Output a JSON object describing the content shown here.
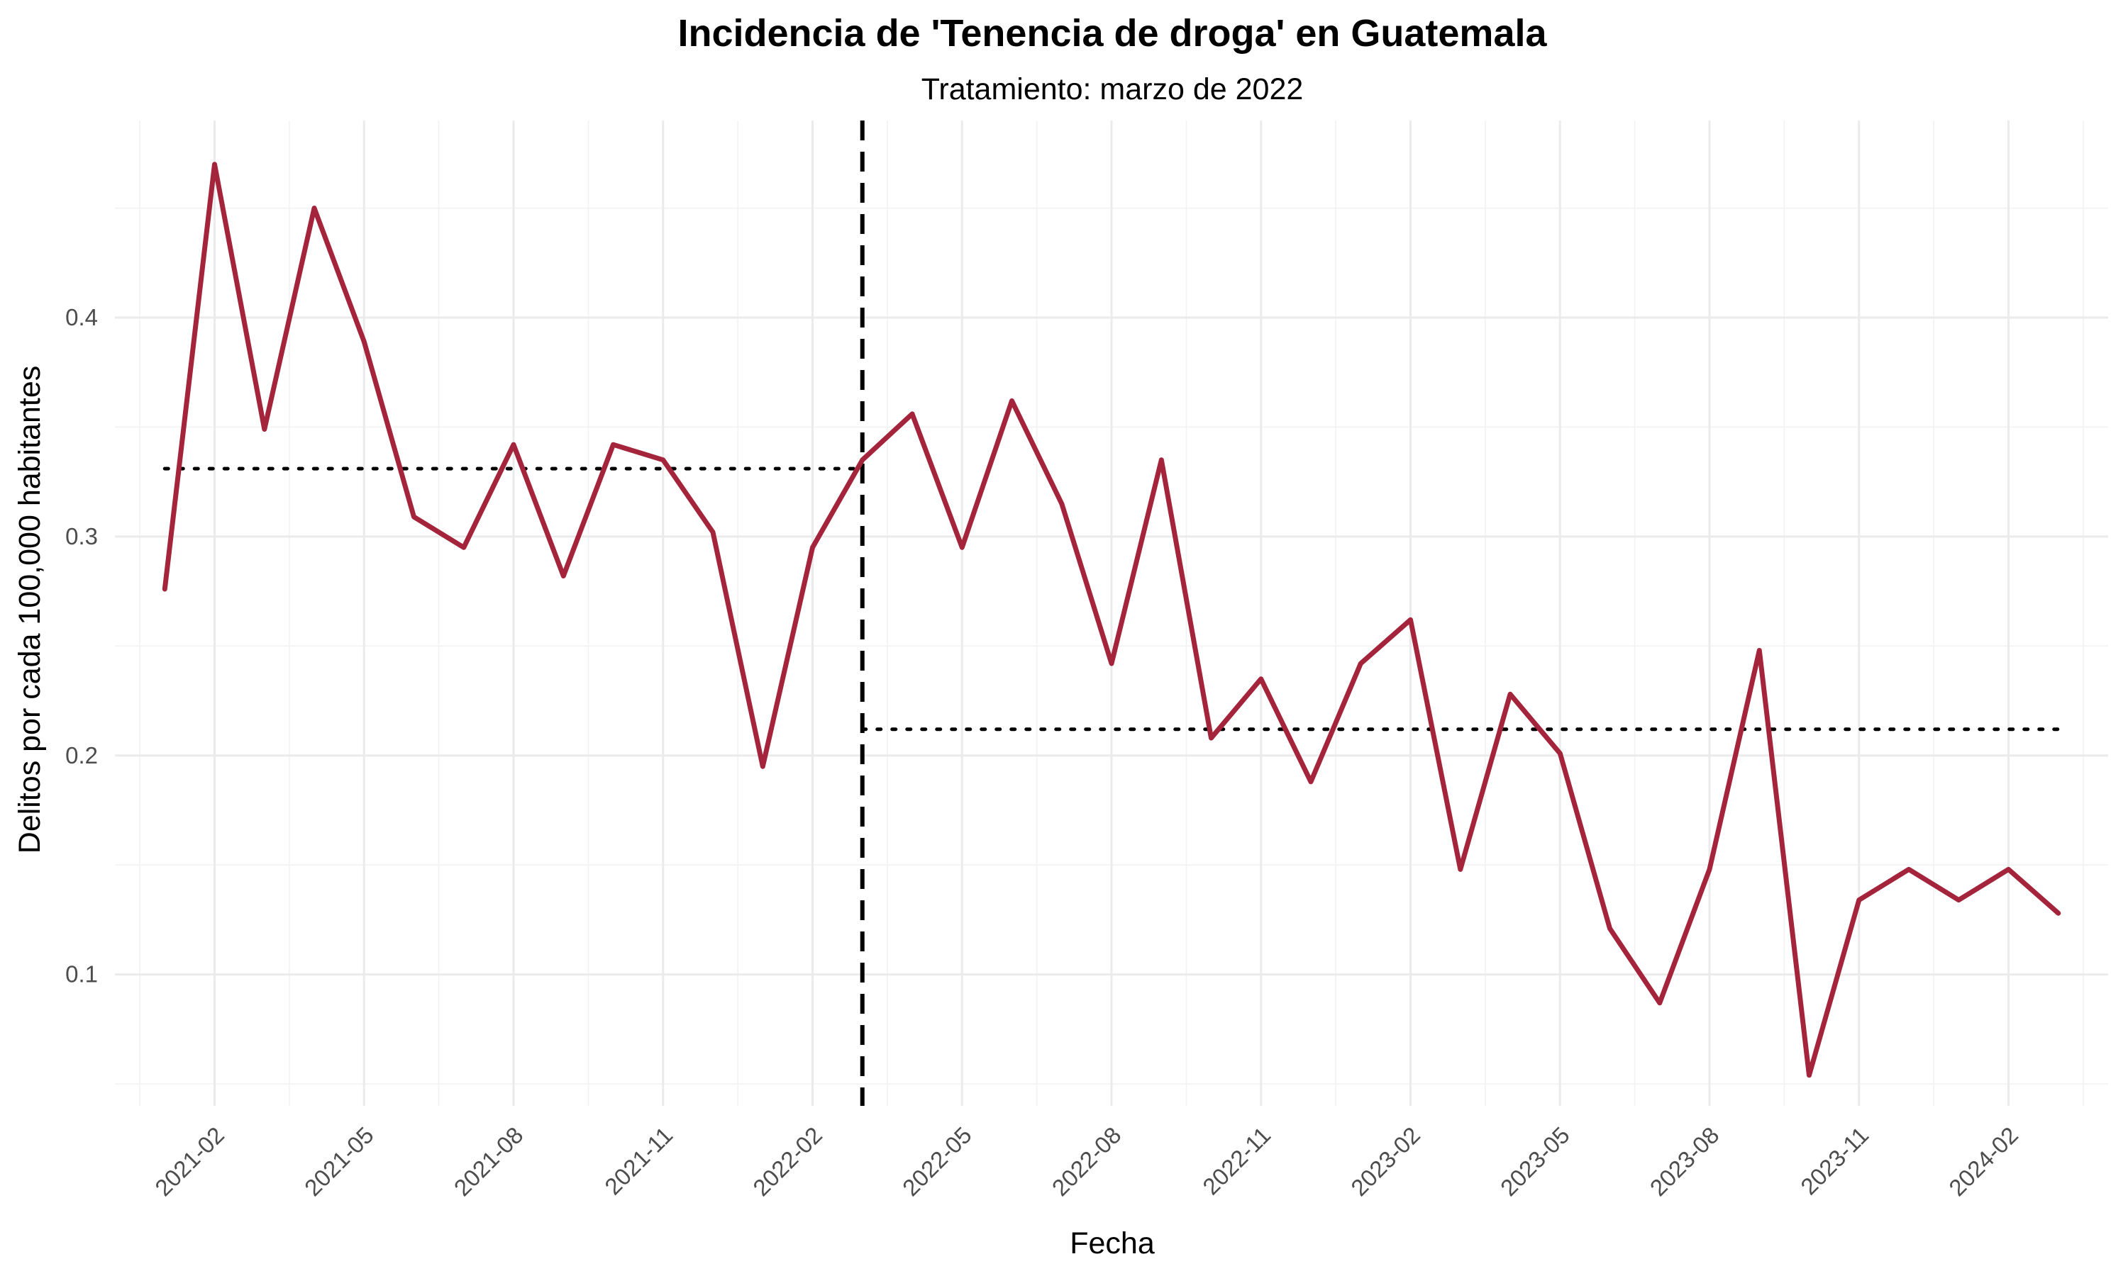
{
  "chart_data": {
    "type": "line",
    "title": "Incidencia de 'Tenencia de droga' en Guatemala",
    "subtitle": "Tratamiento: marzo de 2022",
    "xlabel": "Fecha",
    "ylabel": "Delitos por cada 100,000 habitantes",
    "x_tick_labels": [
      "2021-02",
      "2021-05",
      "2021-08",
      "2021-11",
      "2022-02",
      "2022-05",
      "2022-08",
      "2022-11",
      "2023-02",
      "2023-05",
      "2023-08",
      "2023-11",
      "2024-02"
    ],
    "y_tick_labels": [
      "0.1",
      "0.2",
      "0.3",
      "0.4"
    ],
    "y_ticks": [
      0.1,
      0.2,
      0.3,
      0.4
    ],
    "ylim": [
      0.04,
      0.49
    ],
    "xlim": [
      "2020-12-01",
      "2024-04-01"
    ],
    "grid": true,
    "treatment_date": "2022-03-01",
    "series": [
      {
        "color": "#A4243B",
        "x": [
          "2021-01",
          "2021-02",
          "2021-03",
          "2021-04",
          "2021-05",
          "2021-06",
          "2021-07",
          "2021-08",
          "2021-09",
          "2021-10",
          "2021-11",
          "2021-12",
          "2022-01",
          "2022-02",
          "2022-03",
          "2022-04",
          "2022-05",
          "2022-06",
          "2022-07",
          "2022-08",
          "2022-09",
          "2022-10",
          "2022-11",
          "2022-12",
          "2023-01",
          "2023-02",
          "2023-03",
          "2023-04",
          "2023-05",
          "2023-06",
          "2023-07",
          "2023-08",
          "2023-09",
          "2023-10",
          "2023-11",
          "2023-12",
          "2024-01",
          "2024-02",
          "2024-03"
        ],
        "values": [
          0.276,
          0.47,
          0.349,
          0.45,
          0.389,
          0.309,
          0.295,
          0.342,
          0.282,
          0.342,
          0.335,
          0.302,
          0.195,
          0.295,
          0.335,
          0.356,
          0.295,
          0.362,
          0.315,
          0.242,
          0.335,
          0.208,
          0.235,
          0.188,
          0.242,
          0.262,
          0.148,
          0.228,
          0.201,
          0.121,
          0.087,
          0.148,
          0.248,
          0.054,
          0.134,
          0.148,
          0.134,
          0.148,
          0.128
        ]
      }
    ],
    "reference_lines": [
      {
        "style": "dotted",
        "value": 0.331,
        "x_from": "2021-01",
        "x_to": "2022-03"
      },
      {
        "style": "dotted",
        "value": 0.212,
        "x_from": "2022-03",
        "x_to": "2024-03"
      }
    ]
  }
}
